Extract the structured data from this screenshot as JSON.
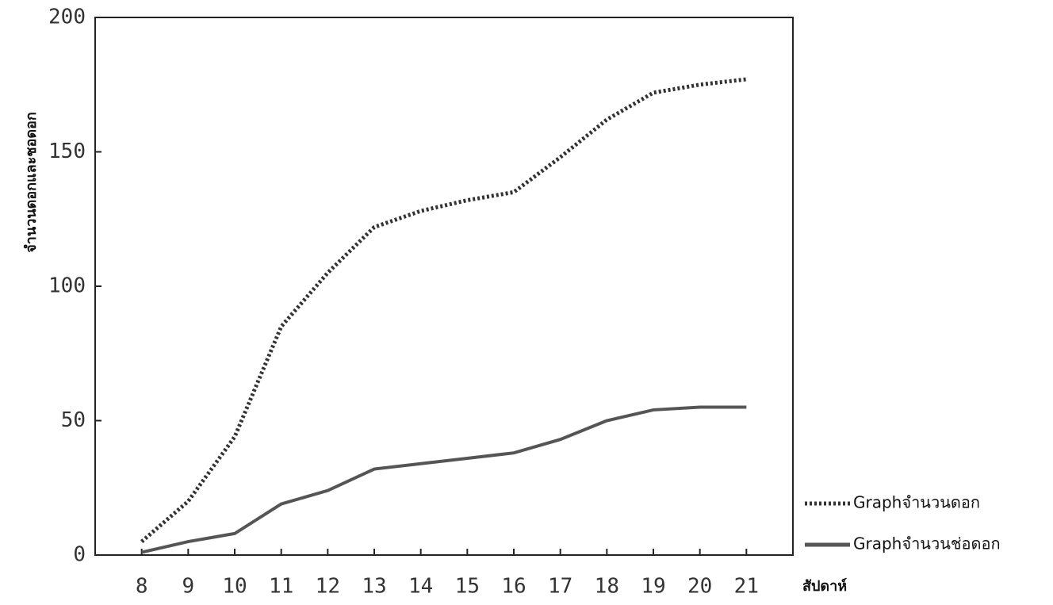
{
  "chart_data": {
    "type": "line",
    "y_label": "จำนวนดอกและชอดอก",
    "x_label": "สัปดาห์",
    "x": [
      8,
      9,
      10,
      11,
      12,
      13,
      14,
      15,
      16,
      17,
      18,
      19,
      20,
      21
    ],
    "series": [
      {
        "name": "Graphจำนวนดอก",
        "color": "#333333",
        "style": "dotted",
        "values": [
          5,
          20,
          44,
          85,
          105,
          122,
          128,
          132,
          135,
          148,
          162,
          172,
          175,
          177
        ]
      },
      {
        "name": "Graphจำนวนช่อดอก",
        "color": "#555555",
        "style": "solid",
        "values": [
          1,
          5,
          8,
          19,
          24,
          32,
          34,
          36,
          38,
          43,
          50,
          54,
          55,
          55
        ]
      }
    ],
    "xlim": [
      7,
      22
    ],
    "xticks": [
      8,
      9,
      10,
      11,
      12,
      13,
      14,
      15,
      16,
      17,
      18,
      19,
      20,
      21
    ],
    "ylim": [
      0,
      200
    ],
    "yticks": [
      0,
      50,
      100,
      150,
      200
    ],
    "legend": "bottom-right"
  }
}
